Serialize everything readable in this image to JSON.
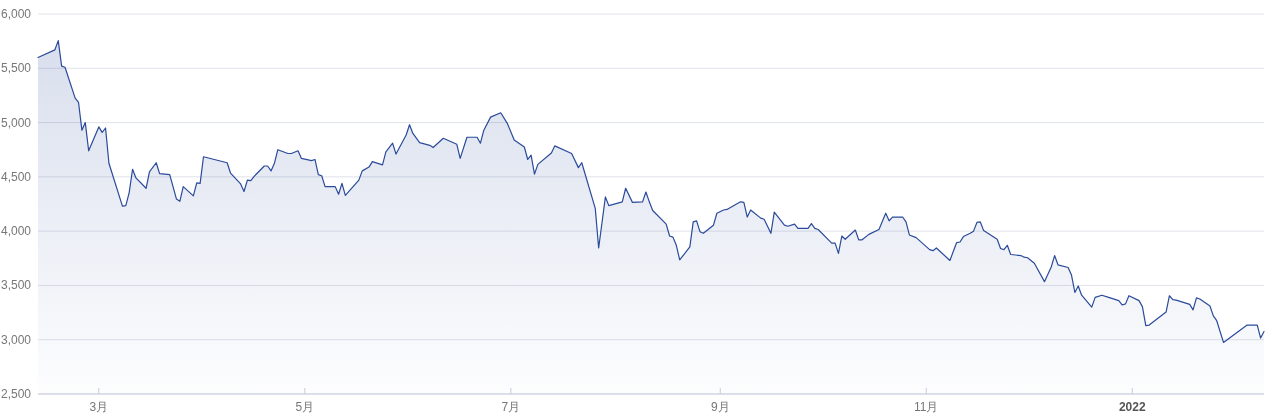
{
  "chart_data": {
    "type": "area",
    "x": [
      "2021-02-11",
      "2021-02-16",
      "2021-02-17",
      "2021-02-18",
      "2021-02-19",
      "2021-02-22",
      "2021-02-23",
      "2021-02-24",
      "2021-02-25",
      "2021-02-26",
      "2021-03-01",
      "2021-03-02",
      "2021-03-03",
      "2021-03-04",
      "2021-03-08",
      "2021-03-09",
      "2021-03-10",
      "2021-03-11",
      "2021-03-12",
      "2021-03-15",
      "2021-03-16",
      "2021-03-18",
      "2021-03-19",
      "2021-03-22",
      "2021-03-24",
      "2021-03-25",
      "2021-03-26",
      "2021-03-29",
      "2021-03-30",
      "2021-03-31",
      "2021-04-01",
      "2021-04-08",
      "2021-04-09",
      "2021-04-12",
      "2021-04-13",
      "2021-04-14",
      "2021-04-15",
      "2021-04-16",
      "2021-04-19",
      "2021-04-20",
      "2021-04-21",
      "2021-04-22",
      "2021-04-23",
      "2021-04-26",
      "2021-04-27",
      "2021-04-29",
      "2021-04-30",
      "2021-05-03",
      "2021-05-04",
      "2021-05-05",
      "2021-05-06",
      "2021-05-07",
      "2021-05-10",
      "2021-05-11",
      "2021-05-12",
      "2021-05-13",
      "2021-05-17",
      "2021-05-18",
      "2021-05-20",
      "2021-05-21",
      "2021-05-24",
      "2021-05-25",
      "2021-05-27",
      "2021-05-28",
      "2021-05-31",
      "2021-06-01",
      "2021-06-02",
      "2021-06-04",
      "2021-06-07",
      "2021-06-08",
      "2021-06-11",
      "2021-06-15",
      "2021-06-16",
      "2021-06-18",
      "2021-06-21",
      "2021-06-22",
      "2021-06-23",
      "2021-06-25",
      "2021-06-28",
      "2021-06-30",
      "2021-07-02",
      "2021-07-05",
      "2021-07-06",
      "2021-07-07",
      "2021-07-08",
      "2021-07-09",
      "2021-07-13",
      "2021-07-14",
      "2021-07-19",
      "2021-07-21",
      "2021-07-22",
      "2021-07-26",
      "2021-07-27",
      "2021-07-29",
      "2021-07-30",
      "2021-08-03",
      "2021-08-04",
      "2021-08-06",
      "2021-08-09",
      "2021-08-10",
      "2021-08-11",
      "2021-08-12",
      "2021-08-16",
      "2021-08-17",
      "2021-08-18",
      "2021-08-19",
      "2021-08-20",
      "2021-08-23",
      "2021-08-24",
      "2021-08-25",
      "2021-08-26",
      "2021-08-27",
      "2021-08-30",
      "2021-08-31",
      "2021-09-02",
      "2021-09-03",
      "2021-09-07",
      "2021-09-08",
      "2021-09-09",
      "2021-09-10",
      "2021-09-13",
      "2021-09-14",
      "2021-09-16",
      "2021-09-17",
      "2021-09-20",
      "2021-09-21",
      "2021-09-23",
      "2021-09-24",
      "2021-09-27",
      "2021-09-28",
      "2021-09-29",
      "2021-09-30",
      "2021-10-04",
      "2021-10-05",
      "2021-10-06",
      "2021-10-07",
      "2021-10-08",
      "2021-10-11",
      "2021-10-12",
      "2021-10-13",
      "2021-10-15",
      "2021-10-18",
      "2021-10-20",
      "2021-10-21",
      "2021-10-22",
      "2021-10-25",
      "2021-10-26",
      "2021-10-27",
      "2021-10-29",
      "2021-11-02",
      "2021-11-03",
      "2021-11-04",
      "2021-11-08",
      "2021-11-10",
      "2021-11-11",
      "2021-11-12",
      "2021-11-14",
      "2021-11-15",
      "2021-11-16",
      "2021-11-17",
      "2021-11-18",
      "2021-11-22",
      "2021-11-23",
      "2021-11-24",
      "2021-11-25",
      "2021-11-26",
      "2021-11-29",
      "2021-11-30",
      "2021-12-01",
      "2021-12-03",
      "2021-12-06",
      "2021-12-08",
      "2021-12-09",
      "2021-12-10",
      "2021-12-13",
      "2021-12-14",
      "2021-12-15",
      "2021-12-16",
      "2021-12-17",
      "2021-12-20",
      "2021-12-21",
      "2021-12-23",
      "2021-12-25",
      "2021-12-28",
      "2021-12-29",
      "2021-12-30",
      "2021-12-31",
      "2022-01-03",
      "2022-01-04",
      "2022-01-05",
      "2022-01-06",
      "2022-01-11",
      "2022-01-12",
      "2022-01-13",
      "2022-01-14",
      "2022-01-18",
      "2022-01-19",
      "2022-01-20",
      "2022-01-21",
      "2022-01-24",
      "2022-01-25",
      "2022-01-26",
      "2022-01-28",
      "2022-02-04",
      "2022-02-07",
      "2022-02-08",
      "2022-02-09"
    ],
    "series": [
      {
        "color": "#2a4a9a",
        "values": [
          5600,
          5670,
          5755,
          5520,
          5510,
          5225,
          5185,
          4930,
          5000,
          4740,
          4960,
          4910,
          4950,
          4625,
          4230,
          4235,
          4355,
          4570,
          4490,
          4395,
          4545,
          4630,
          4530,
          4520,
          4295,
          4275,
          4410,
          4325,
          4445,
          4440,
          4685,
          4630,
          4535,
          4435,
          4365,
          4470,
          4465,
          4505,
          4600,
          4600,
          4555,
          4625,
          4750,
          4715,
          4715,
          4740,
          4670,
          4650,
          4660,
          4520,
          4510,
          4410,
          4410,
          4340,
          4440,
          4330,
          4470,
          4555,
          4590,
          4640,
          4610,
          4730,
          4810,
          4710,
          4885,
          4980,
          4900,
          4815,
          4790,
          4770,
          4855,
          4800,
          4670,
          4865,
          4865,
          4810,
          4930,
          5050,
          5090,
          4990,
          4840,
          4775,
          4660,
          4700,
          4525,
          4615,
          4720,
          4785,
          4715,
          4585,
          4630,
          4210,
          3845,
          4315,
          4235,
          4270,
          4395,
          4265,
          4270,
          4360,
          4270,
          4190,
          4065,
          3955,
          3945,
          3870,
          3735,
          3855,
          4085,
          4095,
          3995,
          3980,
          4055,
          4165,
          4195,
          4200,
          4270,
          4265,
          4130,
          4195,
          4120,
          4110,
          3980,
          4175,
          4055,
          4045,
          4065,
          4025,
          4025,
          4070,
          4025,
          4015,
          3890,
          3890,
          3795,
          3955,
          3925,
          4010,
          3920,
          3920,
          3970,
          4015,
          4165,
          4095,
          4130,
          4130,
          4085,
          3965,
          3940,
          3830,
          3820,
          3845,
          3730,
          3895,
          3900,
          3950,
          3980,
          4000,
          4080,
          4085,
          4005,
          3925,
          3840,
          3830,
          3870,
          3785,
          3775,
          3760,
          3755,
          3705,
          3535,
          3670,
          3775,
          3690,
          3665,
          3595,
          3435,
          3495,
          3410,
          3300,
          3390,
          3410,
          3390,
          3360,
          3320,
          3330,
          3405,
          3360,
          3305,
          3130,
          3135,
          3255,
          3405,
          3370,
          3365,
          3325,
          3275,
          3385,
          3375,
          3310,
          3220,
          3175,
          2975,
          3135,
          3135,
          3015,
          3075
        ]
      }
    ],
    "xlim": [
      "2021-02-11",
      "2022-02-09"
    ],
    "xticks": [
      {
        "value": "2021-03-01",
        "label": "3月"
      },
      {
        "value": "2021-05-01",
        "label": "5月"
      },
      {
        "value": "2021-07-01",
        "label": "7月"
      },
      {
        "value": "2021-09-01",
        "label": "9月"
      },
      {
        "value": "2021-11-01",
        "label": "11月"
      },
      {
        "value": "2022-01-01",
        "label": "2022"
      }
    ],
    "ylim": [
      2500,
      6000
    ],
    "yticks": [
      {
        "value": 2500,
        "label": "2,500"
      },
      {
        "value": 3000,
        "label": "3,000"
      },
      {
        "value": 3500,
        "label": "3,500"
      },
      {
        "value": 4000,
        "label": "4,000"
      },
      {
        "value": 4500,
        "label": "4,500"
      },
      {
        "value": 5000,
        "label": "5,000"
      },
      {
        "value": 5500,
        "label": "5,500"
      },
      {
        "value": 6000,
        "label": "6,000"
      }
    ],
    "grid": "y",
    "marker": "none",
    "line_style": "solid"
  }
}
